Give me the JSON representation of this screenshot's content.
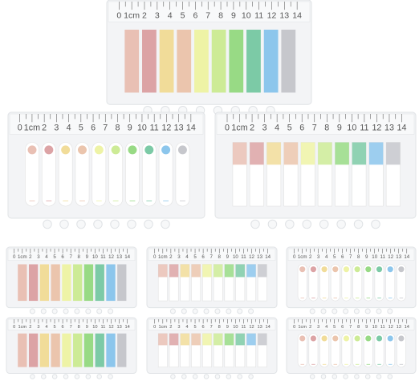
{
  "ruler": {
    "labels": [
      "0",
      "1cm",
      "2",
      "3",
      "4",
      "5",
      "6",
      "7",
      "8",
      "9",
      "10",
      "11",
      "12",
      "13",
      "14"
    ]
  },
  "tab_colors": [
    "#e9c0b4",
    "#dca3a5",
    "#f1dc99",
    "#ebc5ad",
    "#eef3a6",
    "#cdeb96",
    "#98da85",
    "#7ccaa6",
    "#8cc6ec",
    "#c6c7cc"
  ]
}
